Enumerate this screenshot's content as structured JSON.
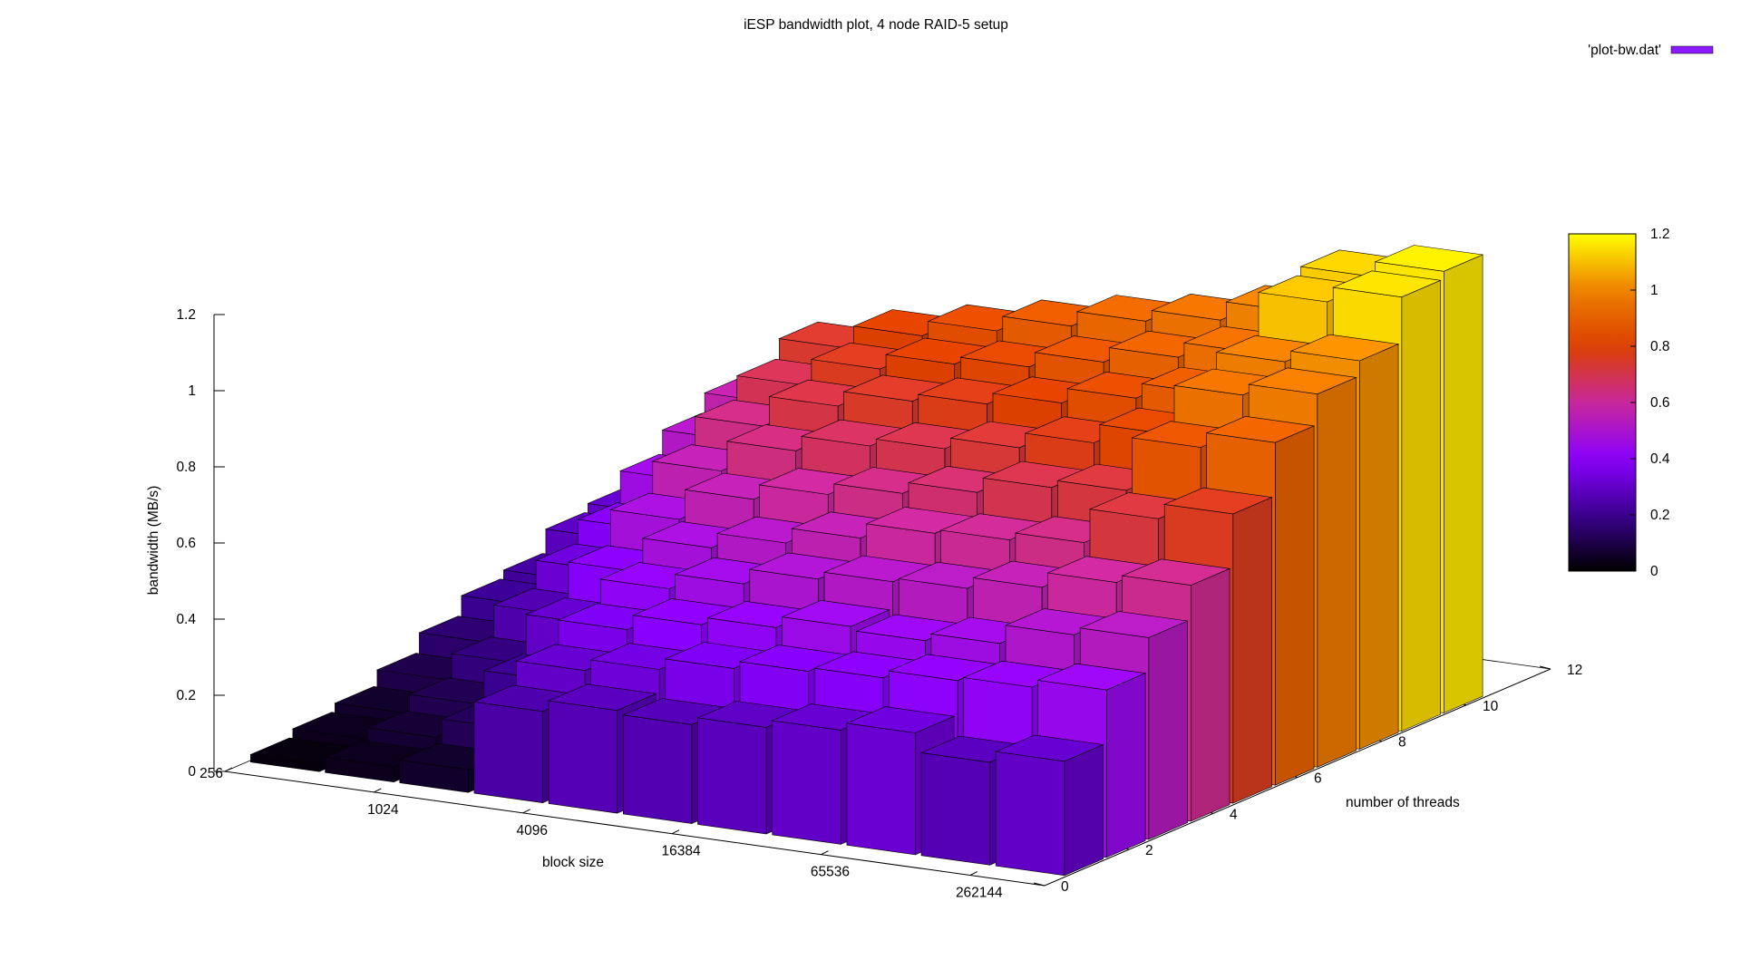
{
  "chart_data": {
    "type": "bar3d",
    "title": "iESP bandwidth plot, 4 node RAID-5 setup",
    "xlabel": "block size",
    "ylabel": "number of threads",
    "zlabel": "bandwidth (MB/s)",
    "legend": {
      "label": "'plot-bw.dat'",
      "placement": "top-right",
      "color": "#8a1aff"
    },
    "x_ticks": [
      "256",
      "1024",
      "4096",
      "16384",
      "65536",
      "262144"
    ],
    "y_ticks": [
      "0",
      "2",
      "4",
      "6",
      "8",
      "10",
      "12"
    ],
    "z_ticks": [
      "0",
      "0.2",
      "0.4",
      "0.6",
      "0.8",
      "1",
      "1.2"
    ],
    "colorbar_ticks": [
      "0",
      "0.2",
      "0.4",
      "0.6",
      "0.8",
      "1",
      "1.2"
    ],
    "xlim": [
      0,
      11
    ],
    "ylim": [
      0,
      12
    ],
    "zlim": [
      0,
      1.2
    ],
    "palette": [
      "#000000",
      "#3a008f",
      "#8a00ff",
      "#c8289b",
      "#dc4000",
      "#ee8000",
      "#ffff00"
    ],
    "threads": [
      1,
      2,
      3,
      4,
      5,
      6,
      7,
      8,
      9,
      10
    ],
    "block_index": [
      0,
      1,
      2,
      3,
      4,
      5,
      6,
      7,
      8,
      9,
      10
    ],
    "values": [
      [
        0.02,
        0.04,
        0.06,
        0.1,
        0.15,
        0.2,
        0.22,
        0.28,
        0.3,
        0.33
      ],
      [
        0.04,
        0.07,
        0.11,
        0.17,
        0.25,
        0.32,
        0.38,
        0.46,
        0.52,
        0.57
      ],
      [
        0.06,
        0.12,
        0.2,
        0.3,
        0.39,
        0.48,
        0.56,
        0.63,
        0.69,
        0.74
      ],
      [
        0.24,
        0.3,
        0.36,
        0.42,
        0.48,
        0.56,
        0.64,
        0.71,
        0.76,
        0.8
      ],
      [
        0.27,
        0.33,
        0.4,
        0.46,
        0.52,
        0.6,
        0.68,
        0.75,
        0.8,
        0.84
      ],
      [
        0.26,
        0.36,
        0.42,
        0.5,
        0.56,
        0.63,
        0.7,
        0.77,
        0.82,
        0.88
      ],
      [
        0.28,
        0.38,
        0.45,
        0.52,
        0.6,
        0.66,
        0.73,
        0.8,
        0.86,
        0.92
      ],
      [
        0.3,
        0.39,
        0.44,
        0.53,
        0.61,
        0.7,
        0.77,
        0.84,
        0.9,
        0.95
      ],
      [
        0.32,
        0.41,
        0.46,
        0.56,
        0.63,
        0.72,
        0.82,
        0.88,
        0.94,
        1.0
      ],
      [
        0.27,
        0.42,
        0.51,
        0.6,
        0.72,
        0.86,
        0.95,
        0.99,
        1.1,
        1.12
      ],
      [
        0.3,
        0.44,
        0.53,
        0.62,
        0.76,
        0.9,
        0.98,
        1.02,
        1.14,
        1.16
      ]
    ]
  }
}
